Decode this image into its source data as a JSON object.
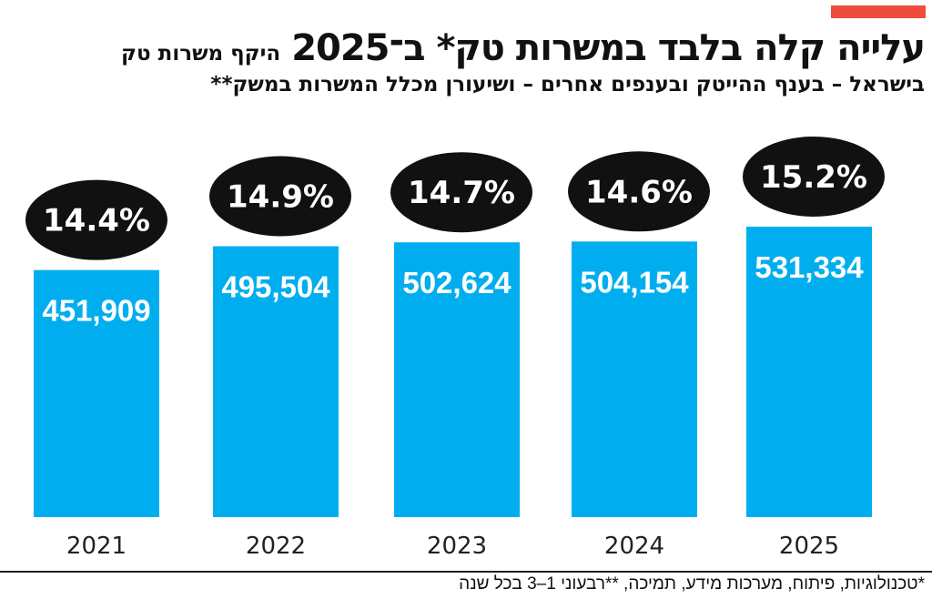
{
  "title_main": "עלייה קלה בלבד במשרות טק* ב־2025",
  "title_sub": "היקף משרות טק",
  "subtitle": "בישראל – בענף ההייטק ובענפים אחרים – ושיעורן מכלל המשרות במשק**",
  "footnote": "*טכנולוגיות, פיתוח, מערכות מידע, תמיכה, **רבעוני 1–3 בכל שנה",
  "colors": {
    "bar": "#00aeef",
    "ellipse": "#111111",
    "accent": "#f04c3e"
  },
  "chart_data": {
    "type": "bar",
    "categories": [
      "2021",
      "2022",
      "2023",
      "2024",
      "2025"
    ],
    "values": [
      451909,
      495504,
      502624,
      504154,
      531334
    ],
    "value_labels": [
      "451,909",
      "495,504",
      "502,624",
      "504,154",
      "531,334"
    ],
    "share_labels": [
      "14.4%",
      "14.9%",
      "14.7%",
      "14.6%",
      "15.2%"
    ],
    "shares": [
      14.4,
      14.9,
      14.7,
      14.6,
      15.2
    ],
    "ylim": [
      0,
      946000
    ],
    "grid": false,
    "legend": "none"
  }
}
